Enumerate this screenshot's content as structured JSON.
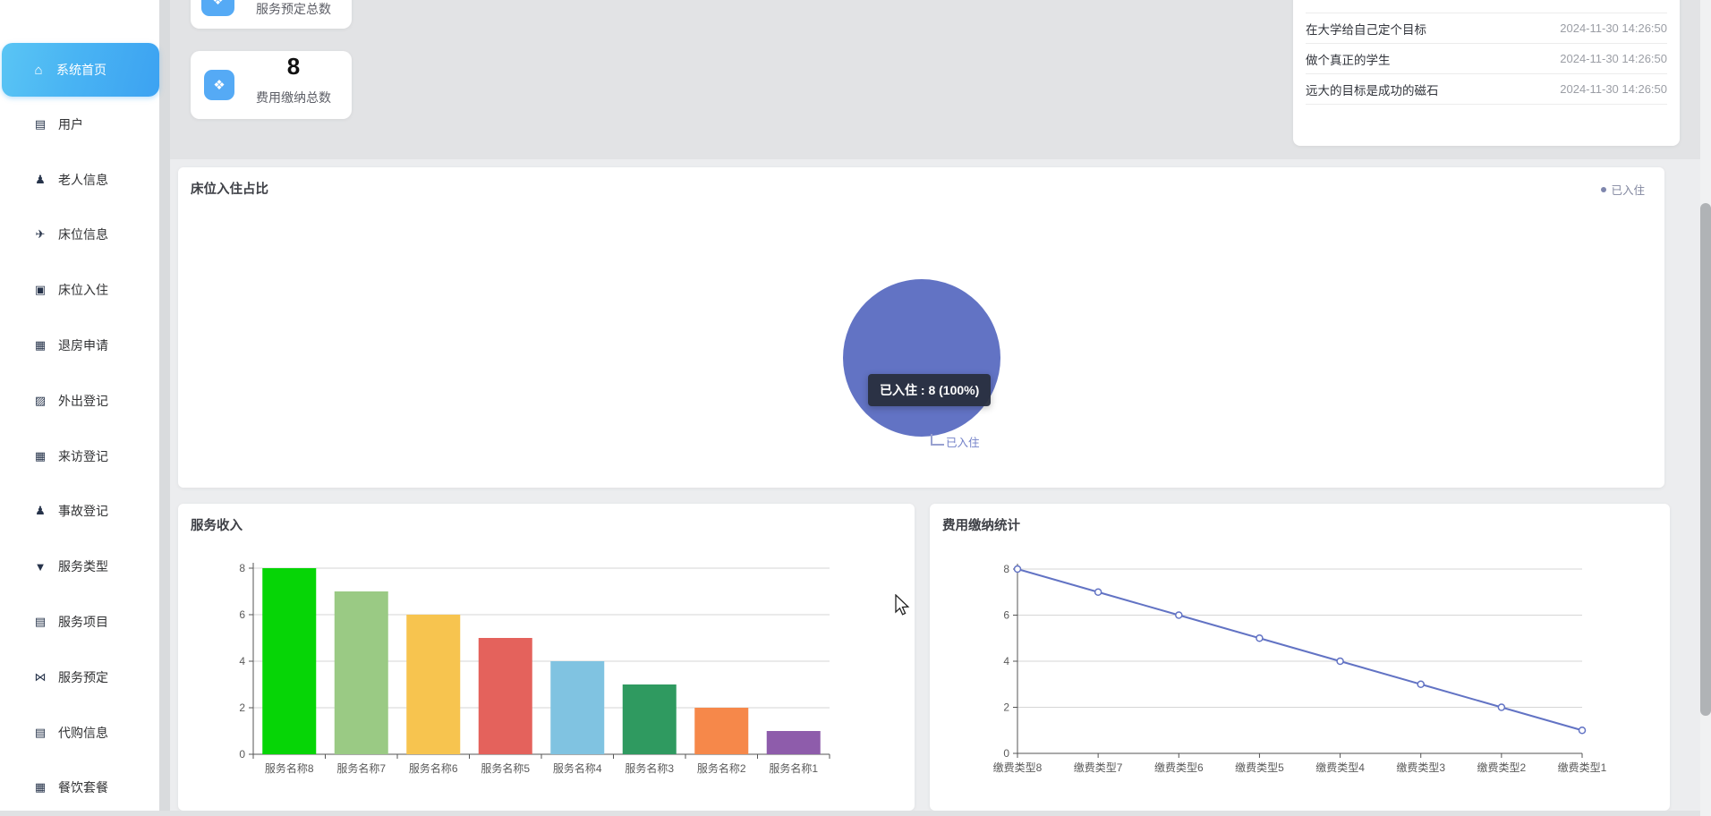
{
  "sidebar": {
    "items": [
      {
        "label": "系统首页",
        "icon": "home-icon",
        "glyph": "⌂",
        "active": true
      },
      {
        "label": "用户",
        "icon": "wallet-icon",
        "glyph": "▤",
        "active": false
      },
      {
        "label": "老人信息",
        "icon": "person-icon",
        "glyph": "♟",
        "active": false
      },
      {
        "label": "床位信息",
        "icon": "paper-plane-icon",
        "glyph": "✈",
        "active": false
      },
      {
        "label": "床位入住",
        "icon": "clipboard-icon",
        "glyph": "▣",
        "active": false
      },
      {
        "label": "退房申请",
        "icon": "grid-icon",
        "glyph": "▦",
        "active": false
      },
      {
        "label": "外出登记",
        "icon": "chart-icon",
        "glyph": "▨",
        "active": false
      },
      {
        "label": "来访登记",
        "icon": "grid-icon",
        "glyph": "▦",
        "active": false
      },
      {
        "label": "事故登记",
        "icon": "person-icon",
        "glyph": "♟",
        "active": false
      },
      {
        "label": "服务类型",
        "icon": "funnel-icon",
        "glyph": "▼",
        "active": false
      },
      {
        "label": "服务项目",
        "icon": "clipboard-icon",
        "glyph": "▤",
        "active": false
      },
      {
        "label": "服务预定",
        "icon": "bowtie-icon",
        "glyph": "⋈",
        "active": false
      },
      {
        "label": "代购信息",
        "icon": "briefcase-icon",
        "glyph": "▤",
        "active": false
      },
      {
        "label": "餐饮套餐",
        "icon": "grid-icon",
        "glyph": "▦",
        "active": false
      }
    ]
  },
  "stat_cards": [
    {
      "value": "",
      "label": "服务预定总数",
      "icon": "calendar-icon",
      "glyph": "❖"
    },
    {
      "value": "8",
      "label": "费用缴纳总数",
      "icon": "cubes-icon",
      "glyph": "❖"
    }
  ],
  "notices": {
    "items": [
      {
        "text": "在大学给自己定个目标",
        "time": "2024-11-30 14:26:50"
      },
      {
        "text": "做个真正的学生",
        "time": "2024-11-30 14:26:50"
      },
      {
        "text": "远大的目标是成功的磁石",
        "time": "2024-11-30 14:26:50"
      }
    ]
  },
  "chart_data": [
    {
      "type": "pie",
      "title": "床位入住占比",
      "legend": [
        "已入住"
      ],
      "legend_position": "top-right",
      "series": [
        {
          "name": "已入住",
          "value": 8,
          "percent": 100
        }
      ],
      "color": "#6273c4",
      "tooltip_text": "已入住 : 8 (100%)",
      "slice_label": "已入住"
    },
    {
      "type": "bar",
      "title": "服务收入",
      "categories": [
        "服务名称8",
        "服务名称7",
        "服务名称6",
        "服务名称5",
        "服务名称4",
        "服务名称3",
        "服务名称2",
        "服务名称1"
      ],
      "values": [
        8,
        7,
        6,
        5,
        4,
        3,
        2,
        1
      ],
      "ylim": [
        0,
        8
      ],
      "yticks": [
        0,
        2,
        4,
        6,
        8
      ],
      "grid": true,
      "bar_colors": [
        "#06d506",
        "#9aca84",
        "#f7c44f",
        "#e4625c",
        "#80c3e1",
        "#2f9a60",
        "#f6884a",
        "#8e5cab"
      ]
    },
    {
      "type": "line",
      "title": "费用缴纳统计",
      "categories": [
        "缴费类型8",
        "缴费类型7",
        "缴费类型6",
        "缴费类型5",
        "缴费类型4",
        "缴费类型3",
        "缴费类型2",
        "缴费类型1"
      ],
      "values": [
        8,
        7,
        6,
        5,
        4,
        3,
        2,
        1
      ],
      "ylim": [
        0,
        8
      ],
      "yticks": [
        0,
        2,
        4,
        6,
        8
      ],
      "grid": true,
      "line_color": "#6273c4",
      "marker": "hollow-circle"
    }
  ],
  "colors": {
    "accent": "#41a6f2",
    "stat_icon_bg": "#55aaf5",
    "tooltip_bg": "#2a2e3e",
    "pie": "#6273c4",
    "grid_line": "#d6d6d6",
    "axis_line": "#555555"
  }
}
